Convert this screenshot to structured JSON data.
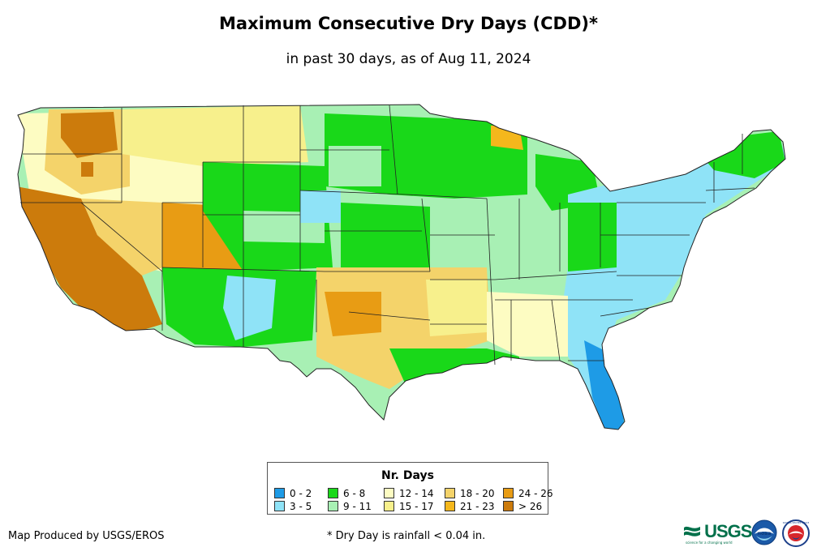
{
  "header": {
    "title": "Maximum Consecutive Dry Days (CDD)*",
    "subtitle": "in past 30 days, as of Aug 11, 2024"
  },
  "legend": {
    "title": "Nr. Days",
    "items": [
      {
        "label": "0 - 2",
        "color": "#1e9be6"
      },
      {
        "label": "3 - 5",
        "color": "#8fe3f7"
      },
      {
        "label": "6 - 8",
        "color": "#19d819"
      },
      {
        "label": "9 - 11",
        "color": "#a8f0b4"
      },
      {
        "label": "12 - 14",
        "color": "#fdfcc2"
      },
      {
        "label": "15 - 17",
        "color": "#f7f08c"
      },
      {
        "label": "18 - 20",
        "color": "#f4d36a"
      },
      {
        "label": "21 - 23",
        "color": "#f4b71c"
      },
      {
        "label": "24 - 26",
        "color": "#e89c14"
      },
      {
        "label": "> 26",
        "color": "#cc7b0c"
      }
    ]
  },
  "footer": {
    "credit": "Map Produced by USGS/EROS",
    "footnote": "* Dry Day is rainfall < 0.04 in."
  },
  "logos": {
    "usgs": "USGS",
    "usgs_tagline": "science for a changing world",
    "noaa": "noaa",
    "nws": "NATIONAL WEATHER SERVICE"
  }
}
